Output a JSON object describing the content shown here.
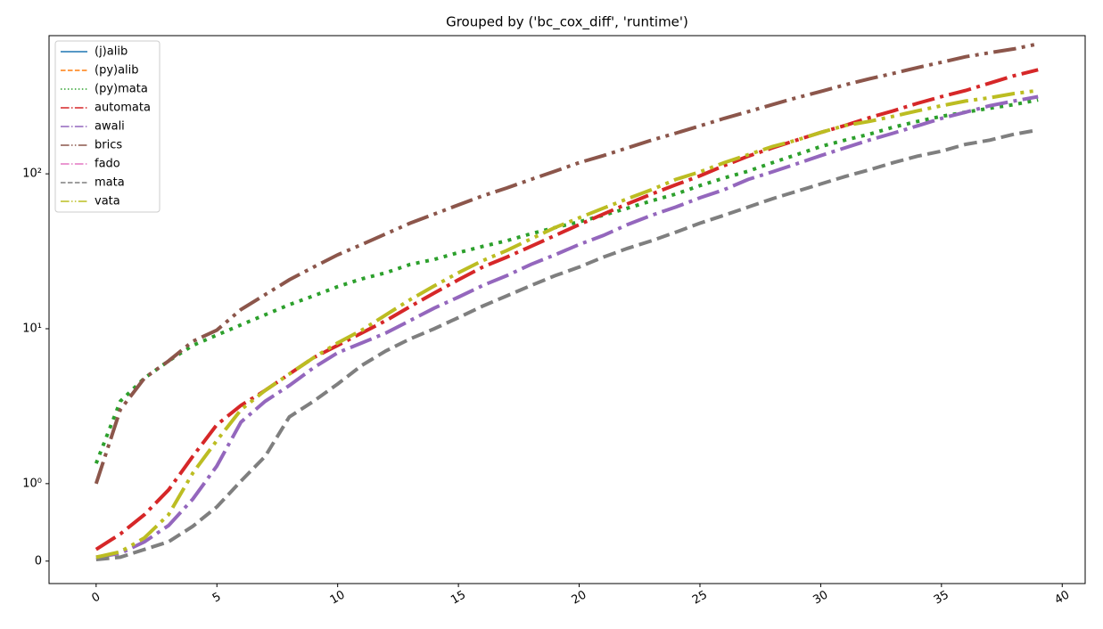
{
  "chart_data": {
    "type": "line",
    "title": "Grouped by ('bc_cox_diff', 'runtime')",
    "x": [
      0,
      1,
      2,
      3,
      4,
      5,
      6,
      7,
      8,
      9,
      10,
      11,
      12,
      13,
      14,
      15,
      16,
      17,
      18,
      19,
      20,
      21,
      22,
      23,
      24,
      25,
      26,
      27,
      28,
      29,
      30,
      31,
      32,
      33,
      34,
      35,
      36,
      37,
      38,
      39
    ],
    "xlim": [
      -1.95,
      40.95
    ],
    "xticks": [
      0,
      5,
      10,
      15,
      20,
      25,
      30,
      35,
      40
    ],
    "yscale": "symlog",
    "linthresh": 1,
    "linscale": 0.5,
    "ylim": [
      -0.29,
      780
    ],
    "yticks": [
      0,
      {
        "value": 1,
        "label": "10⁰"
      },
      {
        "value": 10,
        "label": "10¹"
      },
      {
        "value": 100,
        "label": "10²"
      }
    ],
    "legend": "upper left",
    "series": [
      {
        "name": "(j)alib",
        "color": "#1f77b4",
        "linestyle": "solid",
        "values": [
          null,
          null,
          null,
          null,
          null,
          null,
          null,
          null,
          null,
          null,
          null,
          null,
          null,
          null,
          null,
          null,
          null,
          null,
          null,
          null,
          null,
          null,
          null,
          null,
          null,
          null,
          null,
          null,
          null,
          null,
          null,
          null,
          null,
          null,
          null,
          null,
          null,
          null,
          null,
          null
        ]
      },
      {
        "name": "(py)alib",
        "color": "#ff7f0e",
        "linestyle": "dashed",
        "values": [
          null,
          null,
          null,
          null,
          null,
          null,
          null,
          null,
          null,
          null,
          null,
          null,
          null,
          null,
          null,
          null,
          null,
          null,
          null,
          null,
          null,
          null,
          null,
          null,
          null,
          null,
          null,
          null,
          null,
          null,
          null,
          null,
          null,
          null,
          null,
          null,
          null,
          null,
          null,
          null
        ]
      },
      {
        "name": "(py)mata",
        "color": "#2ca02c",
        "linestyle": "dotted",
        "values": [
          1.35,
          3.4,
          4.8,
          6.2,
          7.8,
          9.1,
          10.6,
          12.3,
          14.3,
          16.3,
          18.7,
          21,
          23,
          26,
          28,
          31,
          34,
          37,
          41,
          45,
          49,
          54,
          60,
          67,
          74,
          84,
          94,
          104,
          118,
          133,
          150,
          165,
          180,
          200,
          218,
          235,
          250,
          265,
          280,
          300
        ]
      },
      {
        "name": "automata",
        "color": "#d62728",
        "linestyle": "dashdot",
        "values": [
          0.15,
          0.35,
          0.6,
          0.92,
          1.5,
          2.4,
          3.2,
          4.0,
          5.1,
          6.5,
          7.8,
          9.4,
          11.3,
          13.9,
          17,
          20.7,
          25,
          29,
          34,
          40,
          47,
          55,
          64,
          74,
          85,
          97,
          113,
          130,
          147,
          165,
          185,
          205,
          230,
          255,
          285,
          315,
          345,
          385,
          430,
          470
        ]
      },
      {
        "name": "awali",
        "color": "#9467bd",
        "linestyle": "dashdot",
        "values": [
          0.05,
          0.1,
          0.25,
          0.46,
          0.8,
          1.3,
          2.5,
          3.4,
          4.3,
          5.6,
          7.0,
          8.1,
          9.4,
          11.3,
          13.6,
          16,
          19,
          22,
          26,
          30,
          35,
          40,
          47,
          54,
          61,
          70,
          79,
          92,
          103,
          116,
          131,
          147,
          165,
          183,
          204,
          228,
          250,
          275,
          295,
          315
        ]
      },
      {
        "name": "brics",
        "color": "#8c564b",
        "linestyle": "dashdotdot",
        "values": [
          1.0,
          3.0,
          4.8,
          6.2,
          8.3,
          9.8,
          13.3,
          16.6,
          20.7,
          25,
          30,
          35,
          41,
          48,
          55,
          63,
          72,
          81,
          92,
          104,
          118,
          131,
          147,
          165,
          183,
          204,
          228,
          252,
          280,
          310,
          340,
          375,
          410,
          445,
          485,
          525,
          570,
          605,
          640,
          690
        ]
      },
      {
        "name": "fado",
        "color": "#e377c2",
        "linestyle": "dashdot",
        "values": [
          null,
          null,
          null,
          null,
          null,
          null,
          null,
          null,
          null,
          null,
          null,
          null,
          null,
          null,
          null,
          null,
          null,
          null,
          null,
          null,
          null,
          null,
          null,
          null,
          null,
          null,
          null,
          null,
          null,
          null,
          null,
          null,
          null,
          null,
          null,
          null,
          null,
          null,
          null,
          null
        ]
      },
      {
        "name": "mata",
        "color": "#7f7f7f",
        "linestyle": "dashed",
        "values": [
          0.02,
          0.05,
          0.15,
          0.25,
          0.45,
          0.7,
          1.04,
          1.5,
          2.7,
          3.4,
          4.4,
          5.8,
          7.2,
          8.6,
          10,
          11.8,
          14,
          16.3,
          19,
          22,
          25,
          29,
          33,
          37,
          42,
          48,
          54,
          61,
          69,
          77,
          86,
          96,
          106,
          118,
          130,
          140,
          155,
          165,
          180,
          192
        ]
      },
      {
        "name": "vata",
        "color": "#bcbd22",
        "linestyle": "dashdotdot",
        "values": [
          0.05,
          0.12,
          0.3,
          0.6,
          1.17,
          1.9,
          3.0,
          4.0,
          5.1,
          6.5,
          8.1,
          9.8,
          12.3,
          15.4,
          18.9,
          23,
          27.5,
          32,
          38,
          45,
          52,
          60,
          69,
          79,
          92,
          103,
          118,
          133,
          150,
          165,
          185,
          205,
          218,
          235,
          255,
          275,
          295,
          310,
          330,
          345
        ]
      }
    ]
  }
}
